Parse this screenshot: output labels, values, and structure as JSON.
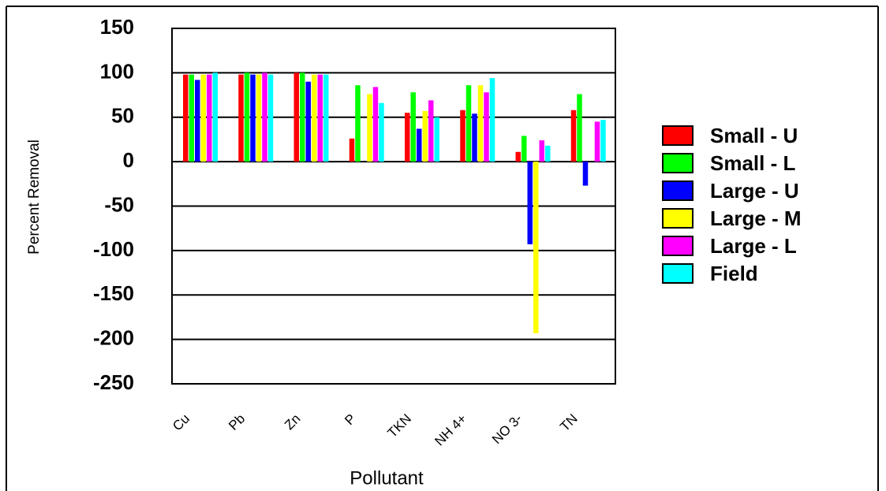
{
  "chart_data": {
    "type": "bar",
    "x_label": "Pollutant",
    "y_label": "Percent Removal",
    "categories": [
      "Cu",
      "Pb",
      "Zn",
      "P",
      "TKN",
      "NH 4+",
      "NO 3-",
      "TN"
    ],
    "series": [
      {
        "name": "Small - U",
        "color": "#ff0000",
        "values": [
          98,
          98,
          100,
          26,
          55,
          58,
          11,
          58
        ]
      },
      {
        "name": "Small - L",
        "color": "#00ff00",
        "values": [
          98,
          100,
          100,
          86,
          78,
          86,
          29,
          76
        ]
      },
      {
        "name": "Large - U",
        "color": "#0000ff",
        "values": [
          92,
          98,
          90,
          null,
          37,
          54,
          -93,
          -27
        ]
      },
      {
        "name": "Large - M",
        "color": "#ffff00",
        "values": [
          98,
          98,
          98,
          76,
          57,
          86,
          -193,
          null
        ]
      },
      {
        "name": "Large - L",
        "color": "#ff00ff",
        "values": [
          98,
          100,
          98,
          84,
          69,
          78,
          24,
          45
        ]
      },
      {
        "name": "Field",
        "color": "#00ffff",
        "values": [
          100,
          98,
          98,
          66,
          50,
          94,
          18,
          47
        ]
      }
    ],
    "ylim": [
      -250,
      150
    ],
    "yticks": [
      -250,
      -200,
      -150,
      -100,
      -50,
      0,
      50,
      100,
      150
    ],
    "grid": true,
    "legend": "right"
  }
}
